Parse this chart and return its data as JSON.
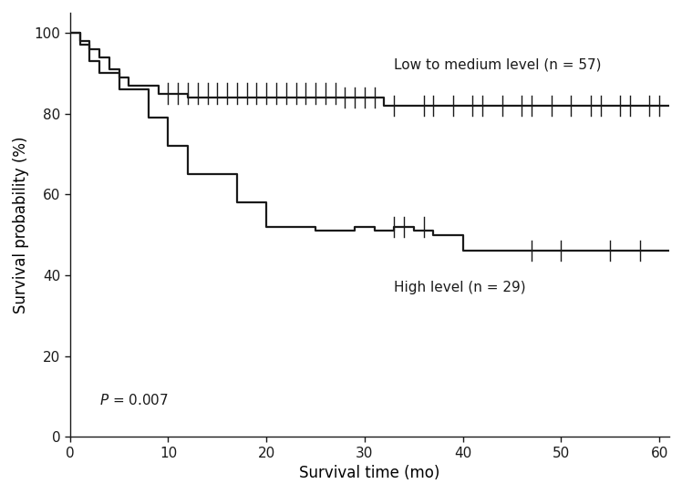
{
  "title": "",
  "xlabel": "Survival time (mo)",
  "ylabel": "Survival probability (%)",
  "p_value_text": "= 0.007",
  "low_medium_label": "Low to medium level (n = 57)",
  "high_label": "High level (n = 29)",
  "xlim": [
    0,
    61
  ],
  "ylim": [
    0,
    105
  ],
  "xticks": [
    0,
    10,
    20,
    30,
    40,
    50,
    60
  ],
  "yticks": [
    0,
    20,
    40,
    60,
    80,
    100
  ],
  "line_color": "#1a1a1a",
  "background_color": "#ffffff",
  "low_med_steps": [
    [
      0,
      100
    ],
    [
      1,
      100
    ],
    [
      1,
      98
    ],
    [
      2,
      98
    ],
    [
      2,
      96
    ],
    [
      3,
      96
    ],
    [
      3,
      94
    ],
    [
      4,
      94
    ],
    [
      4,
      91
    ],
    [
      5,
      91
    ],
    [
      5,
      89
    ],
    [
      6,
      89
    ],
    [
      6,
      87
    ],
    [
      7,
      87
    ],
    [
      8,
      87
    ],
    [
      9,
      87
    ],
    [
      9,
      85
    ],
    [
      10,
      85
    ],
    [
      12,
      85
    ],
    [
      12,
      84
    ],
    [
      15,
      84
    ],
    [
      18,
      84
    ],
    [
      21,
      84
    ],
    [
      24,
      84
    ],
    [
      27,
      84
    ],
    [
      28,
      84
    ],
    [
      30,
      84
    ],
    [
      32,
      82
    ],
    [
      35,
      82
    ],
    [
      38,
      82
    ],
    [
      40,
      82
    ],
    [
      43,
      82
    ],
    [
      45,
      82
    ],
    [
      48,
      82
    ],
    [
      50,
      82
    ],
    [
      52,
      82
    ],
    [
      55,
      82
    ],
    [
      58,
      82
    ],
    [
      61,
      82
    ]
  ],
  "low_med_censors": [
    [
      10,
      85
    ],
    [
      11,
      85
    ],
    [
      12,
      85
    ],
    [
      13,
      85
    ],
    [
      14,
      85
    ],
    [
      15,
      85
    ],
    [
      16,
      85
    ],
    [
      17,
      85
    ],
    [
      18,
      85
    ],
    [
      19,
      85
    ],
    [
      20,
      85
    ],
    [
      21,
      85
    ],
    [
      22,
      85
    ],
    [
      23,
      85
    ],
    [
      24,
      85
    ],
    [
      25,
      85
    ],
    [
      26,
      85
    ],
    [
      27,
      85
    ],
    [
      28,
      84
    ],
    [
      29,
      84
    ],
    [
      30,
      84
    ],
    [
      31,
      84
    ],
    [
      33,
      82
    ],
    [
      36,
      82
    ],
    [
      37,
      82
    ],
    [
      39,
      82
    ],
    [
      41,
      82
    ],
    [
      42,
      82
    ],
    [
      44,
      82
    ],
    [
      46,
      82
    ],
    [
      47,
      82
    ],
    [
      49,
      82
    ],
    [
      51,
      82
    ],
    [
      53,
      82
    ],
    [
      54,
      82
    ],
    [
      56,
      82
    ],
    [
      57,
      82
    ],
    [
      59,
      82
    ],
    [
      60,
      82
    ]
  ],
  "high_steps": [
    [
      0,
      100
    ],
    [
      1,
      100
    ],
    [
      1,
      97
    ],
    [
      2,
      97
    ],
    [
      2,
      93
    ],
    [
      3,
      93
    ],
    [
      3,
      90
    ],
    [
      5,
      90
    ],
    [
      5,
      86
    ],
    [
      7,
      86
    ],
    [
      8,
      86
    ],
    [
      8,
      79
    ],
    [
      10,
      79
    ],
    [
      10,
      72
    ],
    [
      12,
      72
    ],
    [
      12,
      65
    ],
    [
      14,
      65
    ],
    [
      17,
      65
    ],
    [
      17,
      58
    ],
    [
      20,
      58
    ],
    [
      20,
      52
    ],
    [
      25,
      52
    ],
    [
      25,
      51
    ],
    [
      29,
      51
    ],
    [
      29,
      52
    ],
    [
      30,
      52
    ],
    [
      31,
      52
    ],
    [
      31,
      51
    ],
    [
      33,
      51
    ],
    [
      33,
      52
    ],
    [
      35,
      52
    ],
    [
      35,
      51
    ],
    [
      37,
      51
    ],
    [
      37,
      50
    ],
    [
      40,
      50
    ],
    [
      40,
      46
    ],
    [
      42,
      46
    ],
    [
      61,
      46
    ]
  ],
  "high_censors": [
    [
      33,
      52
    ],
    [
      34,
      52
    ],
    [
      36,
      52
    ],
    [
      47,
      46
    ],
    [
      50,
      46
    ],
    [
      55,
      46
    ],
    [
      58,
      46
    ]
  ]
}
